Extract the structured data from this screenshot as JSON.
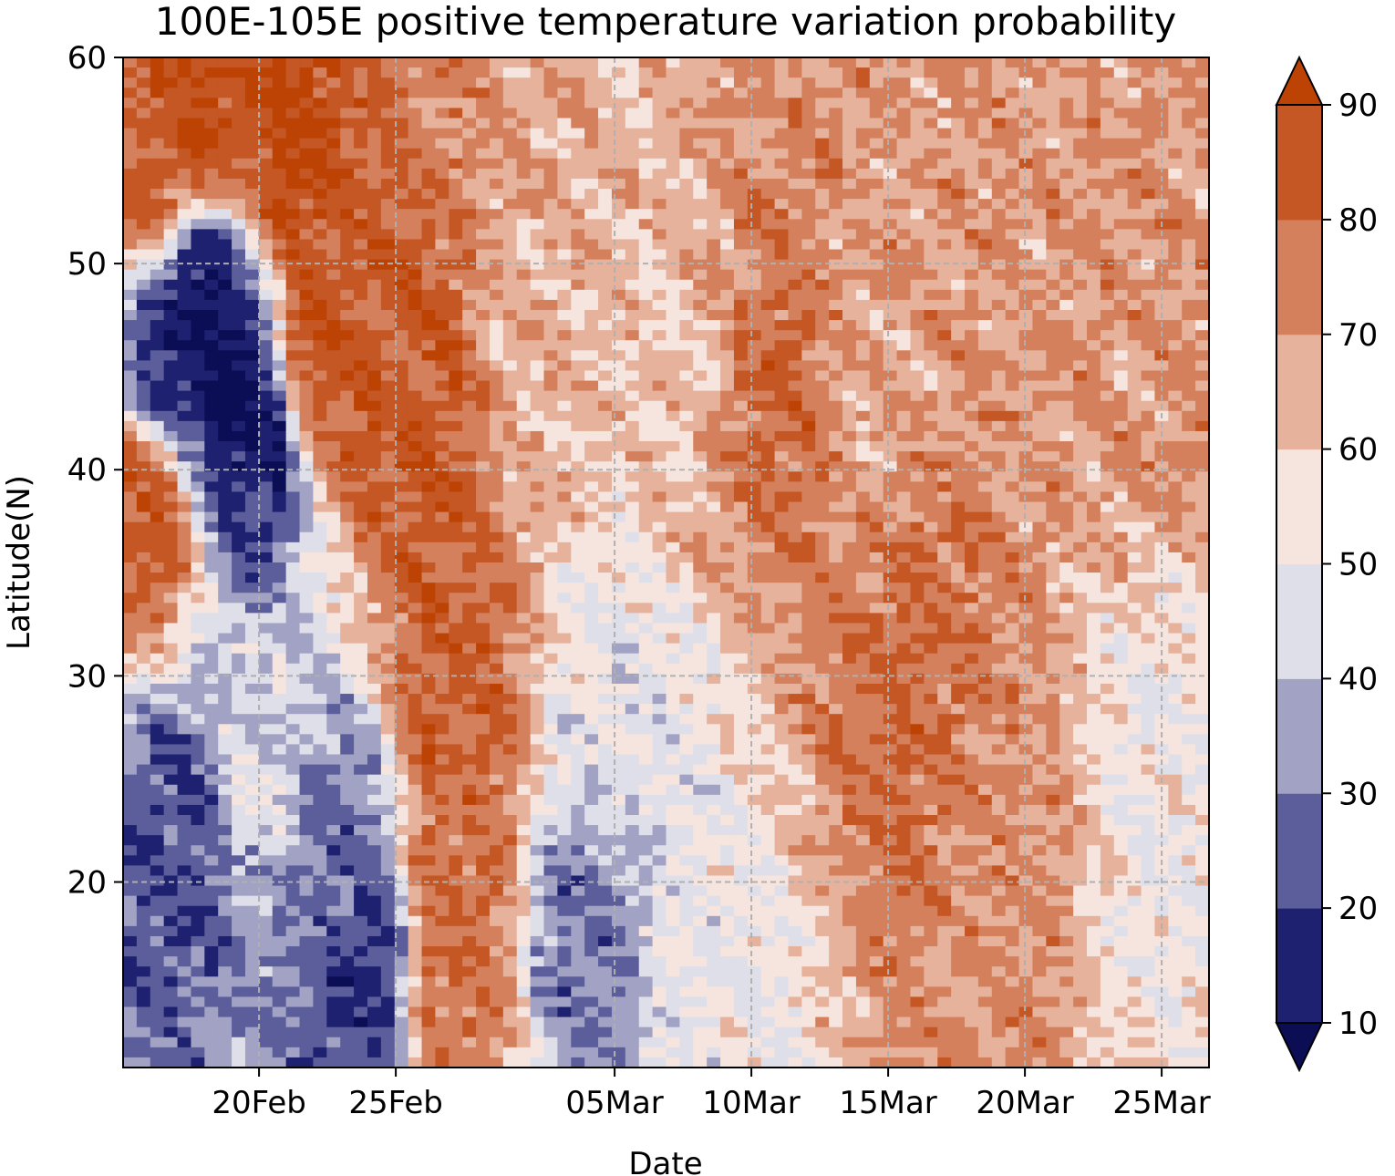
{
  "chart_data": {
    "type": "heatmap",
    "subtype": "filled-contour (Hovmoller)",
    "title": "100E-105E positive temperature variation probability",
    "xlabel": "Date",
    "ylabel": "Latitude(N)",
    "x_axis": {
      "type": "date",
      "range": [
        "16Feb",
        "27Mar"
      ],
      "tick_labels": [
        "20Feb",
        "25Feb",
        "05Mar",
        "10Mar",
        "15Mar",
        "20Mar",
        "25Mar"
      ]
    },
    "y_axis": {
      "range": [
        11,
        60
      ],
      "ticks": [
        20,
        30,
        40,
        50,
        60
      ],
      "tick_labels": [
        "20",
        "30",
        "40",
        "50",
        "60"
      ]
    },
    "grid": true,
    "colorbar": {
      "placement": "right",
      "extend": "both",
      "levels": [
        10,
        20,
        30,
        40,
        50,
        60,
        70,
        80,
        90
      ],
      "tick_labels": [
        "10",
        "20",
        "30",
        "40",
        "50",
        "60",
        "70",
        "80",
        "90"
      ],
      "colors": [
        "#0b0d55",
        "#1e2170",
        "#5c5e9c",
        "#a1a2c4",
        "#dedfe9",
        "#f6e5df",
        "#e6b29b",
        "#d5805c",
        "#c55725",
        "#bd4305"
      ]
    },
    "series": [
      {
        "name": "",
        "date": "16Feb",
        "lat": 55,
        "value": 83
      },
      {
        "name": "",
        "date": "17Feb",
        "lat": 45,
        "value": 15
      },
      {
        "name": "",
        "date": "18Feb",
        "lat": 48,
        "value": 8
      },
      {
        "name": "",
        "date": "19Feb",
        "lat": 44,
        "value": 7
      },
      {
        "name": "",
        "date": "20Feb",
        "lat": 42,
        "value": 12
      },
      {
        "name": "",
        "date": "18Feb",
        "lat": 57,
        "value": 90
      },
      {
        "name": "",
        "date": "21Feb",
        "lat": 55,
        "value": 92
      },
      {
        "name": "",
        "date": "22Feb",
        "lat": 46,
        "value": 88
      },
      {
        "name": "",
        "date": "24Feb",
        "lat": 44,
        "value": 86
      },
      {
        "name": "",
        "date": "26Feb",
        "lat": 42,
        "value": 85
      },
      {
        "name": "",
        "date": "16Feb",
        "lat": 38,
        "value": 84
      },
      {
        "name": "",
        "date": "17Feb",
        "lat": 22,
        "value": 22
      },
      {
        "name": "",
        "date": "20Feb",
        "lat": 26,
        "value": 44
      },
      {
        "name": "",
        "date": "23Feb",
        "lat": 22,
        "value": 28
      },
      {
        "name": "",
        "date": "24Feb",
        "lat": 16,
        "value": 17
      },
      {
        "name": "",
        "date": "27Feb",
        "lat": 29,
        "value": 84
      },
      {
        "name": "",
        "date": "27Feb",
        "lat": 21,
        "value": 80
      },
      {
        "name": "",
        "date": "27Feb",
        "lat": 16,
        "value": 80
      },
      {
        "name": "",
        "date": "04Mar",
        "lat": 17,
        "value": 28
      },
      {
        "name": "",
        "date": "11Mar",
        "lat": 44,
        "value": 80
      },
      {
        "name": "",
        "date": "16Mar",
        "lat": 29,
        "value": 80
      },
      {
        "name": "",
        "date": "19Mar",
        "lat": 22,
        "value": 72
      },
      {
        "name": "",
        "date": "21Mar",
        "lat": 47,
        "value": 70
      },
      {
        "name": "",
        "date": "25Mar",
        "lat": 45,
        "value": 70
      },
      {
        "name": "",
        "date": "02Mar",
        "lat": 45,
        "value": 65
      },
      {
        "name": "",
        "date": "07Mar",
        "lat": 45,
        "value": 62
      },
      {
        "name": "",
        "date": "14Mar",
        "lat": 45,
        "value": 68
      },
      {
        "name": "",
        "date": "05Mar",
        "lat": 28,
        "value": 48
      },
      {
        "name": "",
        "date": "08Mar",
        "lat": 15,
        "value": 50
      },
      {
        "name": "",
        "date": "25Mar",
        "lat": 25,
        "value": 52
      }
    ]
  }
}
